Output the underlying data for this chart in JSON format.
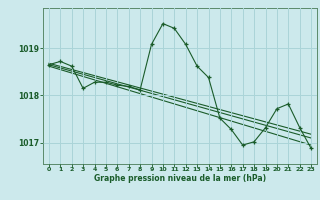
{
  "title": "Graphe pression niveau de la mer (hPa)",
  "background_color": "#cce9ec",
  "grid_color": "#aad4d8",
  "line_color": "#1a5c2a",
  "xlim": [
    -0.5,
    23.5
  ],
  "ylim": [
    1016.55,
    1019.85
  ],
  "yticks": [
    1017,
    1018,
    1019
  ],
  "xticks": [
    0,
    1,
    2,
    3,
    4,
    5,
    6,
    7,
    8,
    9,
    10,
    11,
    12,
    13,
    14,
    15,
    16,
    17,
    18,
    19,
    20,
    21,
    22,
    23
  ],
  "series": [
    {
      "x": [
        0,
        1,
        2,
        3,
        4,
        5,
        6,
        7,
        8,
        9,
        10,
        11,
        12,
        13,
        14,
        15,
        16,
        17,
        18,
        19,
        20,
        21,
        22,
        23
      ],
      "y": [
        1018.65,
        1018.72,
        1018.62,
        1018.15,
        1018.28,
        1018.28,
        1018.22,
        1018.19,
        1018.12,
        1019.08,
        1019.52,
        1019.42,
        1019.08,
        1018.62,
        1018.38,
        1017.52,
        1017.28,
        1016.95,
        1017.02,
        1017.32,
        1017.72,
        1017.82,
        1017.32,
        1016.88
      ]
    },
    {
      "x": [
        0,
        23
      ],
      "y": [
        1018.65,
        1017.1
      ]
    },
    {
      "x": [
        0,
        23
      ],
      "y": [
        1018.62,
        1016.95
      ]
    },
    {
      "x": [
        0,
        23
      ],
      "y": [
        1018.68,
        1017.18
      ]
    }
  ]
}
